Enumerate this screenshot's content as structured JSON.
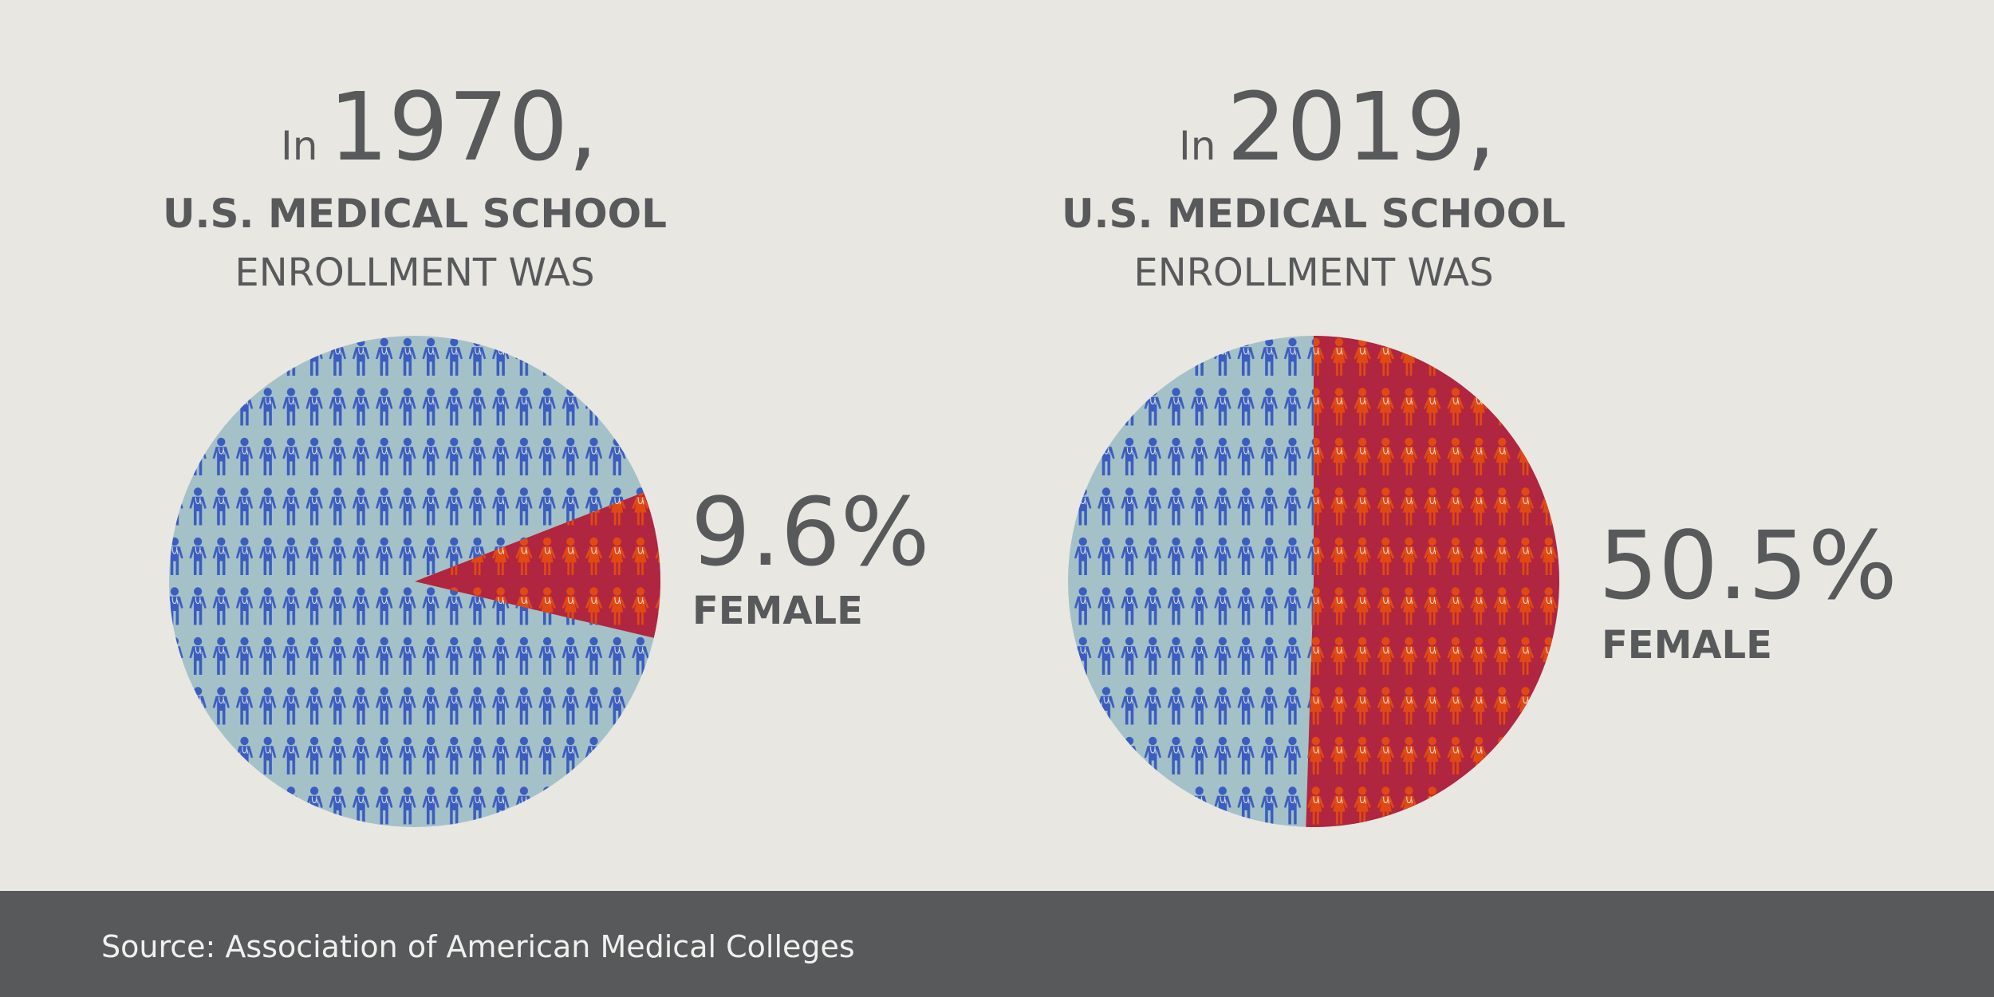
{
  "colors": {
    "background": "#e8e7e2",
    "male_area": "#a5c1c8",
    "female_area": "#b0253f",
    "male_icon": "#3a5dbf",
    "female_icon": "#e04a12",
    "text": "#58595b",
    "footer": "#58595b"
  },
  "icons": {
    "male": "male-doctor-icon",
    "female": "female-doctor-icon"
  },
  "chart_data": [
    {
      "type": "pie",
      "title_prefix": "In",
      "year": "1970,",
      "subtitle_bold": "U.S. MEDICAL SCHOOL",
      "subtitle": "ENROLLMENT WAS",
      "female_percent": 9.6,
      "male_percent": 90.4,
      "value_label": "9.6%",
      "category_label": "FEMALE"
    },
    {
      "type": "pie",
      "title_prefix": "In",
      "year": "2019,",
      "subtitle_bold": "U.S. MEDICAL SCHOOL",
      "subtitle": "ENROLLMENT WAS",
      "female_percent": 50.5,
      "male_percent": 49.5,
      "value_label": "50.5%",
      "category_label": "FEMALE"
    }
  ],
  "footer": {
    "source": "Source: Association of American Medical Colleges"
  }
}
